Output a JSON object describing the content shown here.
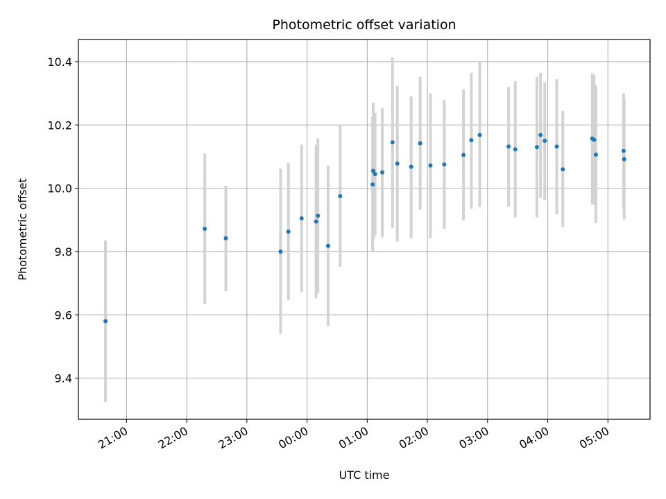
{
  "chart_data": {
    "type": "scatter",
    "title": "Photometric offset variation",
    "xlabel": "UTC time",
    "ylabel": "Photometric offset",
    "x_unit": "hours",
    "xlim": [
      20.2,
      29.7
    ],
    "ylim": [
      9.27,
      10.47
    ],
    "xticks": [
      {
        "value": 21,
        "label": "21:00"
      },
      {
        "value": 22,
        "label": "22:00"
      },
      {
        "value": 23,
        "label": "23:00"
      },
      {
        "value": 24,
        "label": "00:00"
      },
      {
        "value": 25,
        "label": "01:00"
      },
      {
        "value": 26,
        "label": "02:00"
      },
      {
        "value": 27,
        "label": "03:00"
      },
      {
        "value": 28,
        "label": "04:00"
      },
      {
        "value": 29,
        "label": "05:00"
      }
    ],
    "yticks": [
      {
        "value": 9.4,
        "label": "9.4"
      },
      {
        "value": 9.6,
        "label": "9.6"
      },
      {
        "value": 9.8,
        "label": "9.8"
      },
      {
        "value": 10.0,
        "label": "10.0"
      },
      {
        "value": 10.2,
        "label": "10.2"
      },
      {
        "value": 10.4,
        "label": "10.4"
      }
    ],
    "grid": true,
    "colors": {
      "point": "#1f77b4",
      "errorbar": "#d3d3d3",
      "grid": "#b0b0b0"
    },
    "points": [
      {
        "x": 20.65,
        "y": 9.58,
        "lo": 9.325,
        "hi": 9.835
      },
      {
        "x": 22.3,
        "y": 9.872,
        "lo": 9.635,
        "hi": 10.11
      },
      {
        "x": 22.65,
        "y": 9.842,
        "lo": 9.675,
        "hi": 10.008
      },
      {
        "x": 23.56,
        "y": 9.8,
        "lo": 9.54,
        "hi": 10.062
      },
      {
        "x": 23.69,
        "y": 9.863,
        "lo": 9.646,
        "hi": 10.08
      },
      {
        "x": 23.91,
        "y": 9.905,
        "lo": 9.672,
        "hi": 10.138
      },
      {
        "x": 24.15,
        "y": 9.895,
        "lo": 9.652,
        "hi": 10.138
      },
      {
        "x": 24.18,
        "y": 9.913,
        "lo": 9.668,
        "hi": 10.158
      },
      {
        "x": 24.35,
        "y": 9.818,
        "lo": 9.565,
        "hi": 10.07
      },
      {
        "x": 24.55,
        "y": 9.975,
        "lo": 9.752,
        "hi": 10.198
      },
      {
        "x": 25.09,
        "y": 10.012,
        "lo": 9.8,
        "hi": 10.225
      },
      {
        "x": 25.1,
        "y": 10.055,
        "lo": 9.84,
        "hi": 10.27
      },
      {
        "x": 25.13,
        "y": 10.045,
        "lo": 9.85,
        "hi": 10.238
      },
      {
        "x": 25.25,
        "y": 10.05,
        "lo": 9.845,
        "hi": 10.253
      },
      {
        "x": 25.42,
        "y": 10.145,
        "lo": 9.875,
        "hi": 10.413
      },
      {
        "x": 25.5,
        "y": 10.078,
        "lo": 9.832,
        "hi": 10.323
      },
      {
        "x": 25.73,
        "y": 10.068,
        "lo": 9.842,
        "hi": 10.29
      },
      {
        "x": 25.88,
        "y": 10.142,
        "lo": 9.932,
        "hi": 10.353
      },
      {
        "x": 26.05,
        "y": 10.072,
        "lo": 9.842,
        "hi": 10.3
      },
      {
        "x": 26.28,
        "y": 10.075,
        "lo": 9.872,
        "hi": 10.28
      },
      {
        "x": 26.6,
        "y": 10.105,
        "lo": 9.898,
        "hi": 10.312
      },
      {
        "x": 26.73,
        "y": 10.152,
        "lo": 9.935,
        "hi": 10.365
      },
      {
        "x": 26.87,
        "y": 10.168,
        "lo": 9.94,
        "hi": 10.4
      },
      {
        "x": 27.35,
        "y": 10.132,
        "lo": 9.942,
        "hi": 10.32
      },
      {
        "x": 27.46,
        "y": 10.123,
        "lo": 9.908,
        "hi": 10.338
      },
      {
        "x": 27.82,
        "y": 10.13,
        "lo": 9.908,
        "hi": 10.352
      },
      {
        "x": 27.88,
        "y": 10.168,
        "lo": 9.97,
        "hi": 10.365
      },
      {
        "x": 27.95,
        "y": 10.15,
        "lo": 9.962,
        "hi": 10.335
      },
      {
        "x": 28.15,
        "y": 10.132,
        "lo": 9.918,
        "hi": 10.345
      },
      {
        "x": 28.25,
        "y": 10.06,
        "lo": 9.877,
        "hi": 10.245
      },
      {
        "x": 28.74,
        "y": 10.157,
        "lo": 9.948,
        "hi": 10.363
      },
      {
        "x": 28.77,
        "y": 10.153,
        "lo": 9.948,
        "hi": 10.358
      },
      {
        "x": 28.8,
        "y": 10.106,
        "lo": 9.89,
        "hi": 10.325
      },
      {
        "x": 29.26,
        "y": 10.118,
        "lo": 9.935,
        "hi": 10.3
      },
      {
        "x": 29.27,
        "y": 10.092,
        "lo": 9.902,
        "hi": 10.282
      }
    ]
  }
}
